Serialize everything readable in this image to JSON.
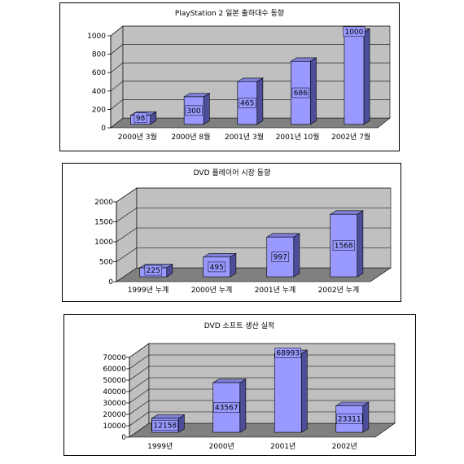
{
  "colors": {
    "wall": "#c0c0c0",
    "floor": "#808080",
    "bar_front": "#9999ff",
    "bar_top": "#8080d8",
    "bar_side": "#4d4d99",
    "grid": "#000000"
  },
  "chart_data": [
    {
      "type": "bar",
      "title": "PlayStation 2 일본 출하대수 동향",
      "categories": [
        "2000년 3월",
        "2000년 8월",
        "2001년 3월",
        "2001년 10월",
        "2002년 7월"
      ],
      "values": [
        98,
        300,
        465,
        686,
        1000
      ],
      "data_labels": [
        "98",
        "300",
        "465",
        "686",
        "1000"
      ],
      "yticks": [
        "0",
        "200",
        "400",
        "600",
        "800",
        "1000"
      ],
      "ylim": [
        0,
        1000
      ],
      "grid": true,
      "legend": "none"
    },
    {
      "type": "bar",
      "title": "DVD 플레이어 시장 동향",
      "categories": [
        "1999년 누계",
        "2000년 누계",
        "2001년 누계",
        "2002년 누계"
      ],
      "values": [
        225,
        495,
        997,
        1568
      ],
      "data_labels": [
        "225",
        "495",
        "997",
        "1568"
      ],
      "yticks": [
        "0",
        "500",
        "1000",
        "1500",
        "2000"
      ],
      "ylim": [
        0,
        2000
      ],
      "grid": true,
      "legend": "none"
    },
    {
      "type": "bar",
      "title": "DVD 소프트 생산 실적",
      "categories": [
        "1999년",
        "2000년",
        "2001년",
        "2002년"
      ],
      "values": [
        12158,
        43567,
        68993,
        23311
      ],
      "data_labels": [
        "12158",
        "43567",
        "68993",
        "23311"
      ],
      "yticks": [
        "0",
        "10000",
        "20000",
        "30000",
        "40000",
        "50000",
        "60000",
        "70000"
      ],
      "ylim": [
        0,
        70000
      ],
      "grid": true,
      "legend": "none"
    }
  ]
}
